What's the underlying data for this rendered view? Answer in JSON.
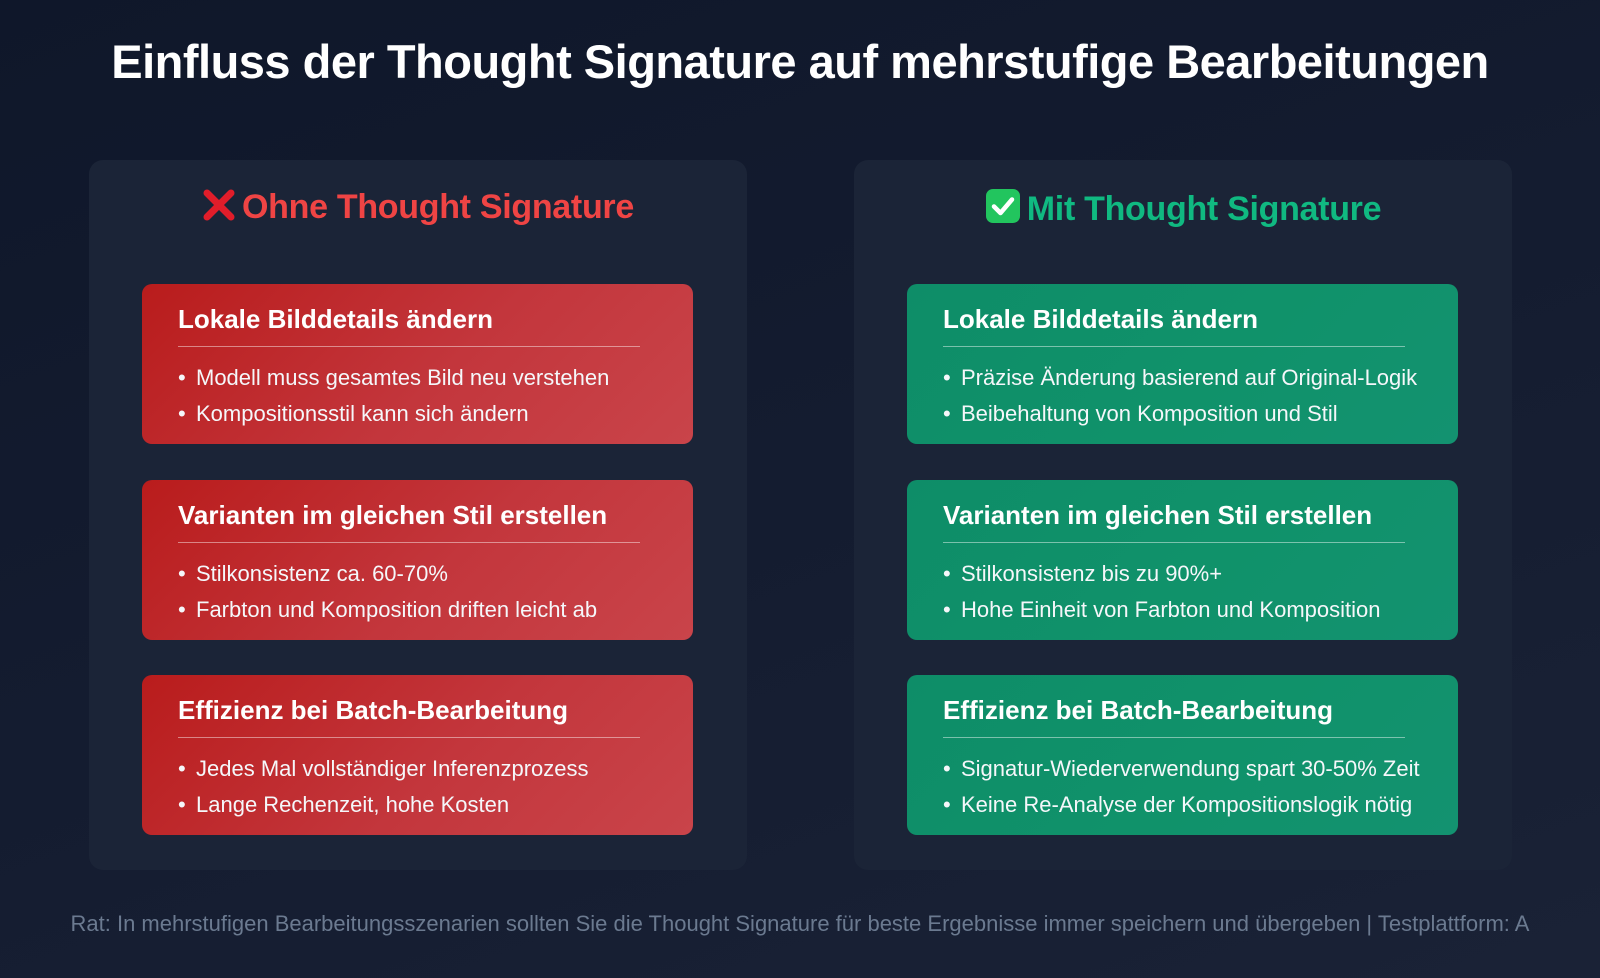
{
  "title": "Einfluss der Thought Signature auf mehrstufige Bearbeitungen",
  "left_panel": {
    "icon": "cross-mark-icon",
    "heading": "Ohne Thought Signature",
    "color": "#ef4444",
    "cards": [
      {
        "title": "Lokale Bilddetails ändern",
        "bullets": [
          "Modell muss gesamtes Bild neu verstehen",
          "Kompositionsstil kann sich ändern"
        ]
      },
      {
        "title": "Varianten im gleichen Stil erstellen",
        "bullets": [
          "Stilkonsistenz ca. 60-70%",
          "Farbton und Komposition driften leicht ab"
        ]
      },
      {
        "title": "Effizienz bei Batch-Bearbeitung",
        "bullets": [
          "Jedes Mal vollständiger Inferenzprozess",
          "Lange Rechenzeit, hohe Kosten"
        ]
      }
    ]
  },
  "right_panel": {
    "icon": "check-mark-button-icon",
    "heading": "Mit Thought Signature",
    "color": "#10b981",
    "cards": [
      {
        "title": "Lokale Bilddetails ändern",
        "bullets": [
          "Präzise Änderung basierend auf Original-Logik",
          "Beibehaltung von Komposition und Stil"
        ]
      },
      {
        "title": "Varianten im gleichen Stil erstellen",
        "bullets": [
          "Stilkonsistenz bis zu 90%+",
          "Hohe Einheit von Farbton und Komposition"
        ]
      },
      {
        "title": "Effizienz bei Batch-Bearbeitung",
        "bullets": [
          "Signatur-Wiederverwendung spart 30-50% Zeit",
          "Keine Re-Analyse der Kompositionslogik nötig"
        ]
      }
    ]
  },
  "footer": "Rat: In mehrstufigen Bearbeitungsszenarien sollten Sie die Thought Signature für beste Ergebnisse immer speichern und übergeben | Testplattform: A"
}
